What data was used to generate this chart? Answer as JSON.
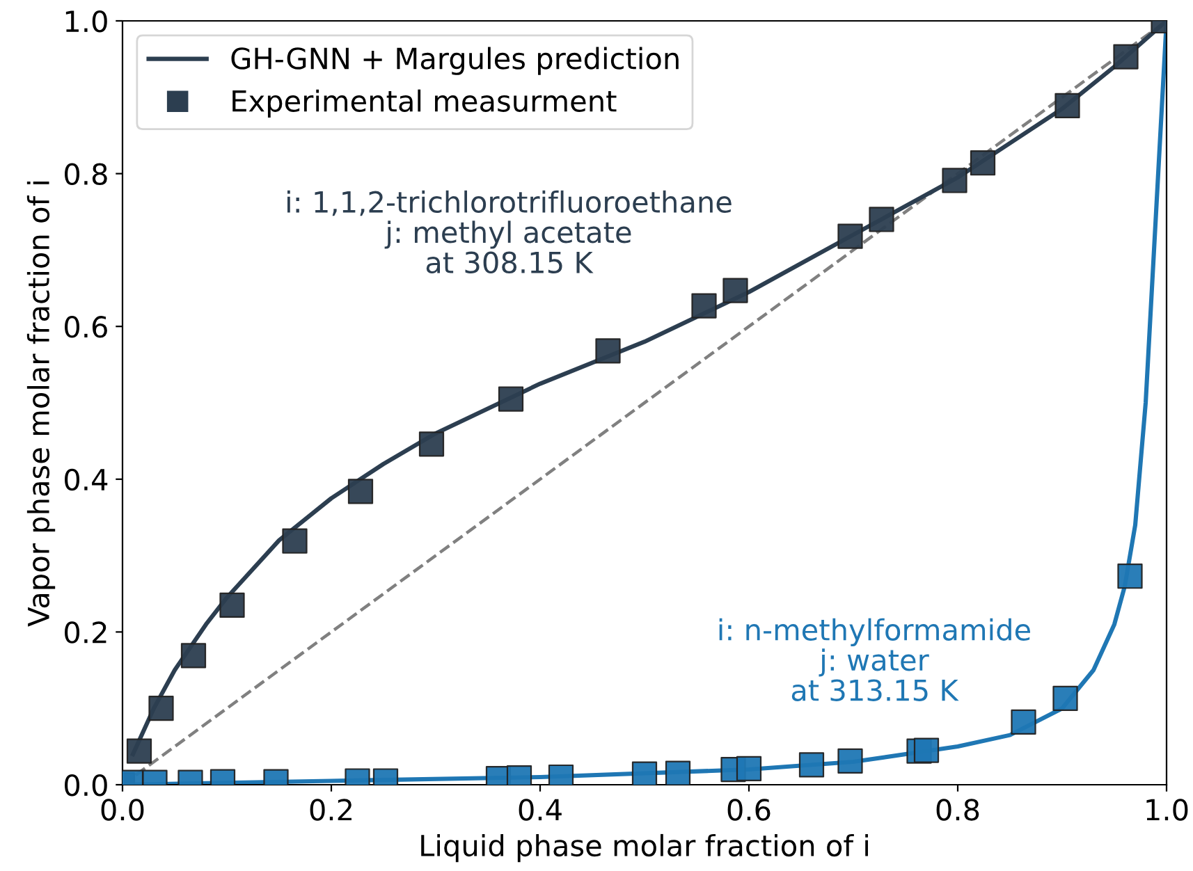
{
  "chart_data": {
    "type": "line",
    "xlabel": "Liquid phase molar fraction of i",
    "ylabel": "Vapor phase molar fraction of i",
    "xlim": [
      0,
      1
    ],
    "ylim": [
      0,
      1
    ],
    "xticks": [
      {
        "value": 0,
        "label": "0.0"
      },
      {
        "value": 0.2,
        "label": "0.2"
      },
      {
        "value": 0.4,
        "label": "0.4"
      },
      {
        "value": 0.6,
        "label": "0.6"
      },
      {
        "value": 0.8,
        "label": "0.8"
      },
      {
        "value": 1,
        "label": "1.0"
      }
    ],
    "yticks": [
      {
        "value": 0,
        "label": "0.0"
      },
      {
        "value": 0.2,
        "label": "0.2"
      },
      {
        "value": 0.4,
        "label": "0.4"
      },
      {
        "value": 0.6,
        "label": "0.6"
      },
      {
        "value": 0.8,
        "label": "0.8"
      },
      {
        "value": 1,
        "label": "1.0"
      }
    ],
    "legend": "top left",
    "grid": false,
    "series": [
      {
        "color": "#808080",
        "line_style": "dashed",
        "x": [
          0,
          1
        ],
        "values": [
          0,
          1
        ]
      },
      {
        "name": "GH-GNN + Margules prediction",
        "color": "#2c3e50",
        "line_style": "solid",
        "x": [
          null,
          0.01,
          0.03,
          0.05,
          0.08,
          0.1,
          0.15,
          0.2,
          0.25,
          0.3,
          0.4,
          0.5,
          0.6,
          0.7,
          0.8,
          0.85,
          0.9,
          0.95,
          1
        ],
        "values": [
          null,
          0.04,
          0.1,
          0.15,
          0.21,
          0.245,
          0.32,
          0.375,
          0.42,
          0.46,
          0.525,
          0.58,
          0.645,
          0.72,
          0.795,
          0.84,
          0.885,
          0.94,
          1
        ]
      },
      {
        "color": "#1f77b4",
        "line_style": "solid",
        "x": [
          0,
          0.2,
          0.4,
          0.6,
          0.7,
          0.8,
          0.85,
          0.9,
          0.93,
          0.95,
          0.96,
          0.97,
          0.98,
          0.99,
          1
        ],
        "values": [
          0,
          0.005,
          0.01,
          0.02,
          0.03,
          0.05,
          0.065,
          0.1,
          0.15,
          0.21,
          0.26,
          0.34,
          0.5,
          0.75,
          1
        ]
      },
      {
        "type": "scatter",
        "name": "Experimental measurment",
        "color": "#2c3e50",
        "marker": "square",
        "x": [
          0,
          0.016,
          0.037,
          0.068,
          0.105,
          0.165,
          0.228,
          0.296,
          0.372,
          0.465,
          0.557,
          0.587,
          0.697,
          0.727,
          0.797,
          0.824,
          0.905,
          0.961,
          0.997
        ],
        "values": [
          0,
          0.044,
          0.1,
          0.169,
          0.235,
          0.319,
          0.384,
          0.446,
          0.505,
          0.568,
          0.627,
          0.647,
          0.718,
          0.74,
          0.791,
          0.814,
          0.889,
          0.953,
          1
        ]
      },
      {
        "type": "scatter",
        "color": "#1f77b4",
        "marker": "square",
        "x": [
          0.008,
          0.031,
          0.065,
          0.096,
          0.147,
          0.225,
          0.252,
          0.36,
          0.38,
          0.42,
          0.5,
          0.532,
          0.585,
          0.6,
          0.66,
          0.697,
          0.763,
          0.77,
          0.863,
          0.903,
          0.965
        ],
        "values": [
          0.003,
          0.003,
          0.003,
          0.004,
          0.004,
          0.005,
          0.005,
          0.008,
          0.009,
          0.01,
          0.014,
          0.015,
          0.02,
          0.021,
          0.026,
          0.031,
          0.044,
          0.045,
          0.082,
          0.113,
          0.273
        ]
      }
    ],
    "annotations": [
      "i: 1,1,2-trichlorotrifluoroethane\nj: methyl acetate\nat 308.15 K",
      "i: n-methylformamide\nj: water\nat 313.15 K"
    ]
  }
}
